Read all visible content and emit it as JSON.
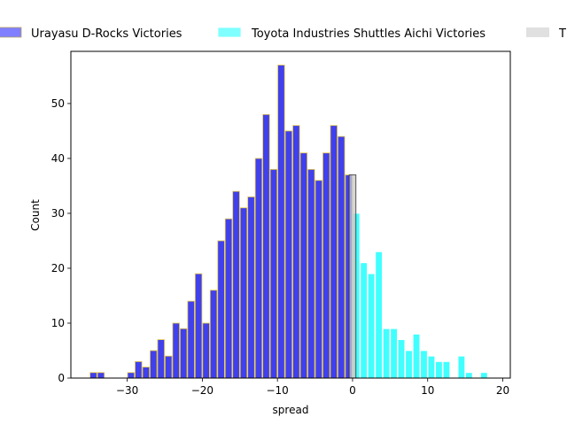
{
  "chart_data": {
    "type": "bar",
    "xlabel": "spread",
    "ylabel": "Count",
    "xlim": [
      -37.5,
      21.0
    ],
    "ylim": [
      0,
      59.5
    ],
    "xticks": [
      -30,
      -20,
      -10,
      0,
      10,
      20
    ],
    "yticks": [
      0,
      10,
      20,
      30,
      40,
      50
    ],
    "xtick_labels": [
      "−30",
      "−20",
      "−10",
      "0",
      "10",
      "20"
    ],
    "ytick_labels": [
      "0",
      "10",
      "20",
      "30",
      "40",
      "50"
    ],
    "grid": false,
    "legend": {
      "placement": "top-center",
      "columns": 3
    },
    "bin_width": 1,
    "series": [
      {
        "name": "Urayasu D-Rocks Victories",
        "color": "#0000e6",
        "edge_color": "#e6c84b",
        "bins": [
          {
            "x": -34.5,
            "count": 1
          },
          {
            "x": -33.5,
            "count": 1
          },
          {
            "x": -32.5,
            "count": 0
          },
          {
            "x": -31.5,
            "count": 0
          },
          {
            "x": -30.5,
            "count": 0
          },
          {
            "x": -29.5,
            "count": 1
          },
          {
            "x": -28.5,
            "count": 3
          },
          {
            "x": -27.5,
            "count": 2
          },
          {
            "x": -26.5,
            "count": 5
          },
          {
            "x": -25.5,
            "count": 7
          },
          {
            "x": -24.5,
            "count": 4
          },
          {
            "x": -23.5,
            "count": 10
          },
          {
            "x": -22.5,
            "count": 9
          },
          {
            "x": -21.5,
            "count": 14
          },
          {
            "x": -20.5,
            "count": 19
          },
          {
            "x": -19.5,
            "count": 10
          },
          {
            "x": -18.5,
            "count": 16
          },
          {
            "x": -17.5,
            "count": 25
          },
          {
            "x": -16.5,
            "count": 29
          },
          {
            "x": -15.5,
            "count": 34
          },
          {
            "x": -14.5,
            "count": 31
          },
          {
            "x": -13.5,
            "count": 33
          },
          {
            "x": -12.5,
            "count": 40
          },
          {
            "x": -11.5,
            "count": 48
          },
          {
            "x": -10.5,
            "count": 38
          },
          {
            "x": -9.5,
            "count": 57
          },
          {
            "x": -8.5,
            "count": 45
          },
          {
            "x": -7.5,
            "count": 46
          },
          {
            "x": -6.5,
            "count": 41
          },
          {
            "x": -5.5,
            "count": 38
          },
          {
            "x": -4.5,
            "count": 36
          },
          {
            "x": -3.5,
            "count": 41
          },
          {
            "x": -2.5,
            "count": 46
          },
          {
            "x": -1.5,
            "count": 44
          },
          {
            "x": -0.5,
            "count": 37
          }
        ]
      },
      {
        "name": "Toyota Industries Shuttles Aichi Victories",
        "color": "#00ffff",
        "edge_color": "#ffffff",
        "bins": [
          {
            "x": 0.5,
            "count": 30
          },
          {
            "x": 1.5,
            "count": 21
          },
          {
            "x": 2.5,
            "count": 19
          },
          {
            "x": 3.5,
            "count": 23
          },
          {
            "x": 4.5,
            "count": 9
          },
          {
            "x": 5.5,
            "count": 9
          },
          {
            "x": 6.5,
            "count": 7
          },
          {
            "x": 7.5,
            "count": 5
          },
          {
            "x": 8.5,
            "count": 8
          },
          {
            "x": 9.5,
            "count": 5
          },
          {
            "x": 10.5,
            "count": 4
          },
          {
            "x": 11.5,
            "count": 3
          },
          {
            "x": 12.5,
            "count": 3
          },
          {
            "x": 13.5,
            "count": 0
          },
          {
            "x": 14.5,
            "count": 4
          },
          {
            "x": 15.5,
            "count": 1
          },
          {
            "x": 16.5,
            "count": 0
          },
          {
            "x": 17.5,
            "count": 1
          }
        ]
      },
      {
        "name": "T",
        "color": "#c8c8c8",
        "edge_color": "#333333",
        "bins": [
          {
            "x": 0.0,
            "count": 37
          }
        ]
      }
    ]
  }
}
